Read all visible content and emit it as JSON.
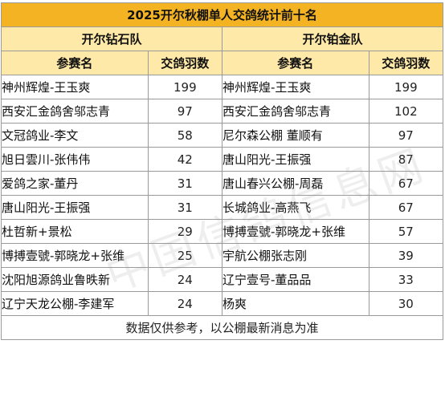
{
  "title": "2025开尔秋棚单人交鸽统计前十名",
  "teams": [
    {
      "name": "开尔钻石队",
      "col_name": "参赛名",
      "col_count": "交鸽羽数",
      "rows": [
        {
          "name": "神州辉煌-王玉爽",
          "count": "199"
        },
        {
          "name": "西安汇金鸽舍邬志青",
          "count": "97"
        },
        {
          "name": "文冠鸽业-李文",
          "count": "58"
        },
        {
          "name": "旭日雲川-张伟伟",
          "count": "42"
        },
        {
          "name": "爱鸽之家-董丹",
          "count": "31"
        },
        {
          "name": "唐山阳光-王振强",
          "count": "31"
        },
        {
          "name": "杜哲新+景松",
          "count": "29"
        },
        {
          "name": "博搏壹號-郭晓龙+张维",
          "count": "25"
        },
        {
          "name": "沈阳旭源鸽业鲁昳新",
          "count": "24"
        },
        {
          "name": "辽宁天龙公棚-李建军",
          "count": "24"
        }
      ]
    },
    {
      "name": "开尔铂金队",
      "col_name": "参赛名",
      "col_count": "交鸽羽数",
      "rows": [
        {
          "name": "神州辉煌-王玉爽",
          "count": "199"
        },
        {
          "name": "西安汇金鸽舍邬志青",
          "count": "102"
        },
        {
          "name": "尼尔森公棚 董顺有",
          "count": "97"
        },
        {
          "name": "唐山阳光-王振强",
          "count": "87"
        },
        {
          "name": "唐山春兴公棚-周磊",
          "count": "67"
        },
        {
          "name": "长城鸽业-高燕飞",
          "count": "67"
        },
        {
          "name": "博搏壹號-郭晓龙+张维",
          "count": "57"
        },
        {
          "name": "宇航公棚张志刚",
          "count": "39"
        },
        {
          "name": "辽宁壹号-董品品",
          "count": "33"
        },
        {
          "name": "杨爽",
          "count": "30"
        }
      ]
    }
  ],
  "footer": "数据仅供参考，以公棚最新消息为准",
  "watermark": "中国信鸽信息网"
}
